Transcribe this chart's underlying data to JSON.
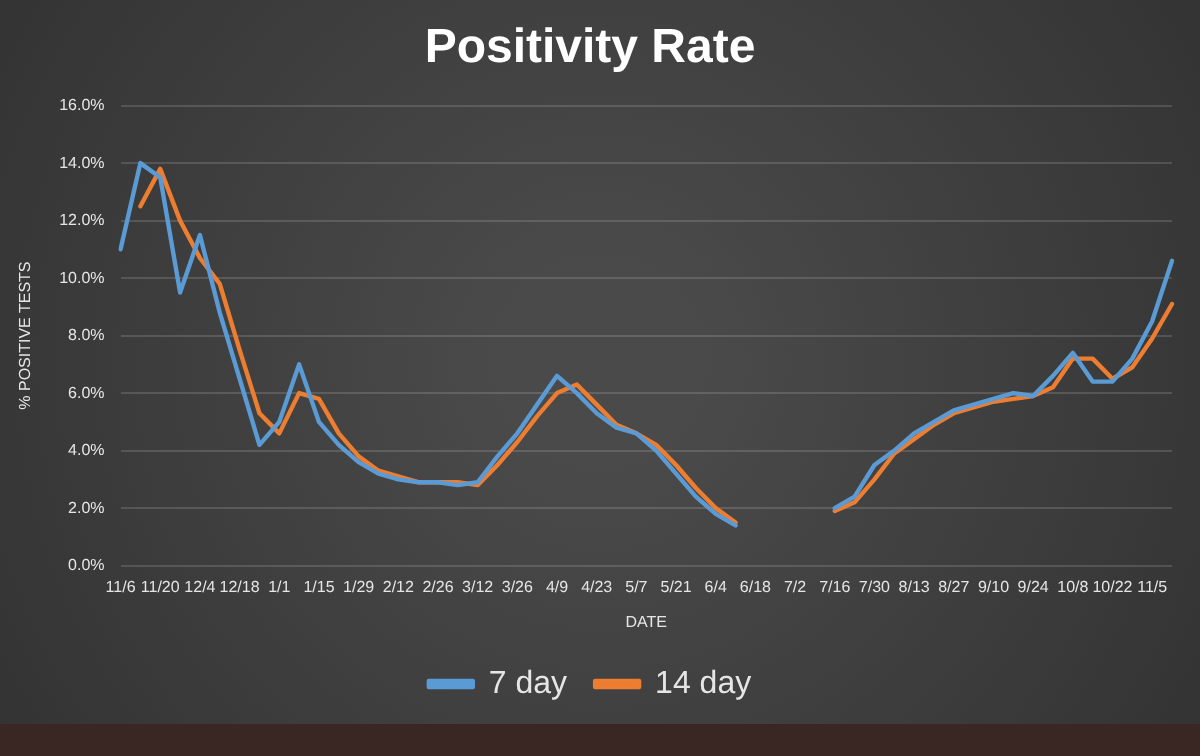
{
  "chart_data": {
    "type": "line",
    "title": "Positivity Rate",
    "xlabel": "DATE",
    "ylabel": "% POSITIVE TESTS",
    "categories": [
      "11/6",
      null,
      "11/20",
      null,
      "12/4",
      null,
      "12/18",
      null,
      "1/1",
      null,
      "1/15",
      null,
      "1/29",
      null,
      "2/12",
      null,
      "2/26",
      null,
      "3/12",
      null,
      "3/26",
      null,
      "4/9",
      null,
      "4/23",
      null,
      "5/7",
      null,
      "5/21",
      null,
      "6/4",
      null,
      "6/18",
      null,
      "7/2",
      null,
      "7/16",
      null,
      "7/30",
      null,
      "8/13",
      null,
      "8/27",
      null,
      "9/10",
      null,
      "9/24",
      null,
      "10/8",
      null,
      "10/22",
      null,
      "11/5",
      null
    ],
    "series": [
      {
        "name": "7 day",
        "color": "#5b9bd5",
        "values": [
          11.0,
          14.0,
          13.5,
          9.5,
          11.5,
          8.8,
          6.5,
          4.2,
          5.0,
          7.0,
          5.0,
          4.2,
          3.6,
          3.2,
          3.0,
          2.9,
          2.9,
          2.8,
          2.9,
          3.8,
          4.6,
          5.6,
          6.6,
          6.0,
          5.3,
          4.8,
          4.6,
          4.0,
          3.2,
          2.4,
          1.8,
          1.4,
          null,
          null,
          null,
          null,
          2.0,
          2.4,
          3.5,
          4.0,
          4.6,
          5.0,
          5.4,
          5.6,
          5.8,
          6.0,
          5.9,
          6.6,
          7.4,
          6.4,
          6.4,
          7.2,
          8.5,
          10.6
        ]
      },
      {
        "name": "14 day",
        "color": "#ed7d31",
        "values": [
          null,
          12.5,
          13.8,
          12.0,
          10.7,
          9.8,
          7.5,
          5.3,
          4.6,
          6.0,
          5.8,
          4.6,
          3.8,
          3.3,
          3.1,
          2.9,
          2.9,
          2.9,
          2.8,
          3.5,
          4.3,
          5.2,
          6.0,
          6.3,
          5.6,
          4.9,
          4.6,
          4.2,
          3.5,
          2.7,
          2.0,
          1.5,
          null,
          null,
          null,
          null,
          1.9,
          2.2,
          3.0,
          3.9,
          4.4,
          4.9,
          5.3,
          5.5,
          5.7,
          5.8,
          5.9,
          6.2,
          7.2,
          7.2,
          6.5,
          6.9,
          7.9,
          9.1
        ]
      }
    ],
    "ylim": [
      0,
      16
    ],
    "yticks": [
      {
        "value": 0,
        "label": "0.0%"
      },
      {
        "value": 2,
        "label": "2.0%"
      },
      {
        "value": 4,
        "label": "4.0%"
      },
      {
        "value": 6,
        "label": "6.0%"
      },
      {
        "value": 8,
        "label": "8.0%"
      },
      {
        "value": 10,
        "label": "10.0%"
      },
      {
        "value": 12,
        "label": "12.0%"
      },
      {
        "value": 14,
        "label": "14.0%"
      },
      {
        "value": 16,
        "label": "16.0%"
      }
    ],
    "grid": "y",
    "legend": "bottom",
    "marker": "none",
    "line_style": "solid"
  }
}
